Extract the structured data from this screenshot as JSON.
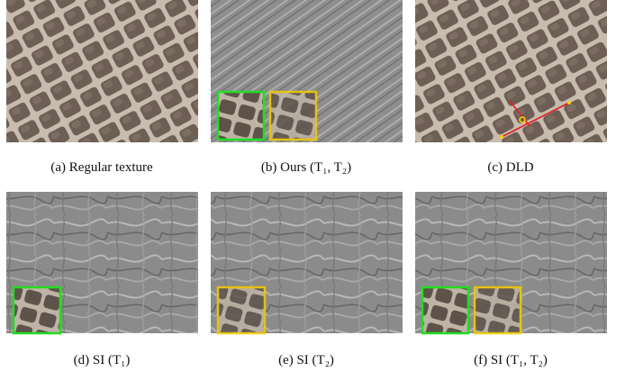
{
  "figure": {
    "captions": [
      "(a) Regular texture",
      "(b) Ours (T₁, T₂)",
      "(c) DLD",
      "(d) SI (T₁)",
      "(e) SI (T₂)",
      "(f) SI (T₁, T₂)"
    ]
  }
}
